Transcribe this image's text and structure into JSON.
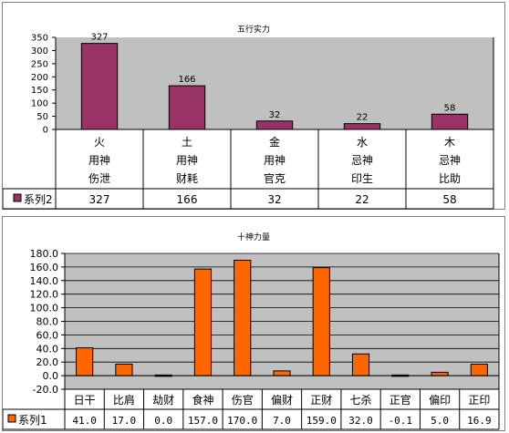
{
  "chart_data": [
    {
      "type": "bar",
      "title": "五行实力",
      "ylim": [
        0,
        350
      ],
      "yticks": [
        "0",
        "50",
        "100",
        "150",
        "200",
        "250",
        "300",
        "350"
      ],
      "categories": [
        [
          "火",
          "用神",
          "伤泄"
        ],
        [
          "土",
          "用神",
          "财耗"
        ],
        [
          "金",
          "用神",
          "官克"
        ],
        [
          "水",
          "忌神",
          "印生"
        ],
        [
          "木",
          "忌神",
          "比助"
        ]
      ],
      "series": [
        {
          "name": "系列2",
          "values": [
            327,
            166,
            32,
            22,
            58
          ],
          "color": "#993366"
        }
      ],
      "data_labels": [
        "327",
        "166",
        "32",
        "22",
        "58"
      ],
      "table_values": [
        "327",
        "166",
        "32",
        "22",
        "58"
      ],
      "plot_background": "#c0c0c0",
      "grid": false,
      "legend": "data-table"
    },
    {
      "type": "bar",
      "title": "十神力量",
      "ylim": [
        -20,
        180
      ],
      "yticks": [
        "-20.0",
        "0.0",
        "20.0",
        "40.0",
        "60.0",
        "80.0",
        "100.0",
        "120.0",
        "140.0",
        "160.0",
        "180.0"
      ],
      "categories": [
        "日干",
        "比肩",
        "劫财",
        "食神",
        "伤官",
        "偏财",
        "正财",
        "七杀",
        "正官",
        "偏印",
        "正印"
      ],
      "series": [
        {
          "name": "系列1",
          "values": [
            41.0,
            17.0,
            0.0,
            157.0,
            170.0,
            7.0,
            159.0,
            32.0,
            -0.1,
            5.0,
            16.9
          ],
          "color": "#ff6600"
        }
      ],
      "table_values": [
        "41.0",
        "17.0",
        "0.0",
        "157.0",
        "170.0",
        "7.0",
        "159.0",
        "32.0",
        "-0.1",
        "5.0",
        "16.9"
      ],
      "plot_background": "#c0c0c0",
      "grid": true,
      "legend": "data-table"
    }
  ]
}
